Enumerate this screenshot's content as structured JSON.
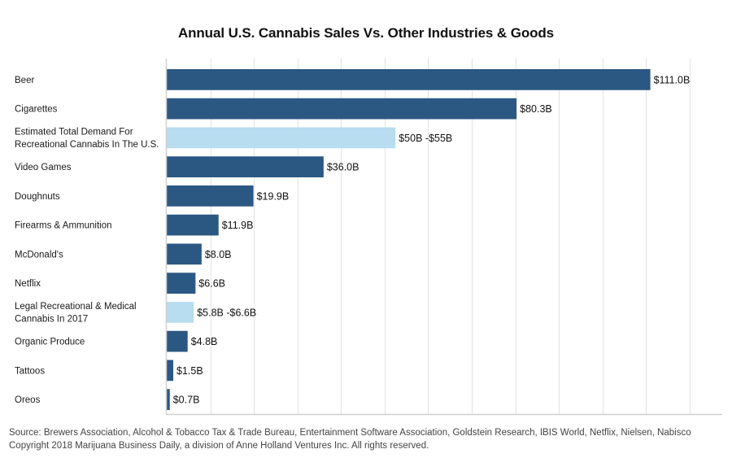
{
  "chart_data": {
    "type": "bar",
    "orientation": "horizontal",
    "title": "Annual U.S. Cannabis Sales Vs. Other Industries & Goods",
    "xlabel": "",
    "ylabel": "",
    "xlim": [
      0,
      127.5
    ],
    "x_grid_step": 10,
    "grid": true,
    "tick_labels_shown": false,
    "legend": "none",
    "unit": "USD billions",
    "colors": {
      "default": "#2b5883",
      "highlight": "#b8dcf0"
    },
    "categories": [
      "Beer",
      "Cigarettes",
      "Estimated Total Demand For\nRecreational Cannabis In The U.S.",
      "Video Games",
      "Doughnuts",
      "Firearms & Ammunition",
      "McDonald's",
      "Netflix",
      "Legal Recreational & Medical\nCannabis In 2017",
      "Organic Produce",
      "Tattoos",
      "Oreos"
    ],
    "values": [
      111.0,
      80.3,
      52.5,
      36.0,
      19.9,
      11.9,
      8.0,
      6.6,
      6.2,
      4.8,
      1.5,
      0.7
    ],
    "ranges": [
      null,
      null,
      [
        50,
        55
      ],
      null,
      null,
      null,
      null,
      null,
      [
        5.8,
        6.6
      ],
      null,
      null,
      null
    ],
    "highlight": [
      false,
      false,
      true,
      false,
      false,
      false,
      false,
      false,
      true,
      false,
      false,
      false
    ],
    "data_labels": [
      "$111.0B",
      "$80.3B",
      "$50B -$55B",
      "$36.0B",
      "$19.9B",
      "$11.9B",
      "$8.0B",
      "$6.6B",
      "$5.8B -$6.6B",
      "$4.8B",
      "$1.5B",
      "$0.7B"
    ]
  },
  "footer": {
    "source": "Source: Brewers Association, Alcohol & Tobacco Tax & Trade Bureau, Entertainment Software Association, Goldstein Research, IBIS World, Netflix, Nielsen, Nabisco",
    "copyright": "Copyright 2018 Marijuana Business Daily, a division of Anne Holland Ventures Inc. All rights reserved."
  }
}
